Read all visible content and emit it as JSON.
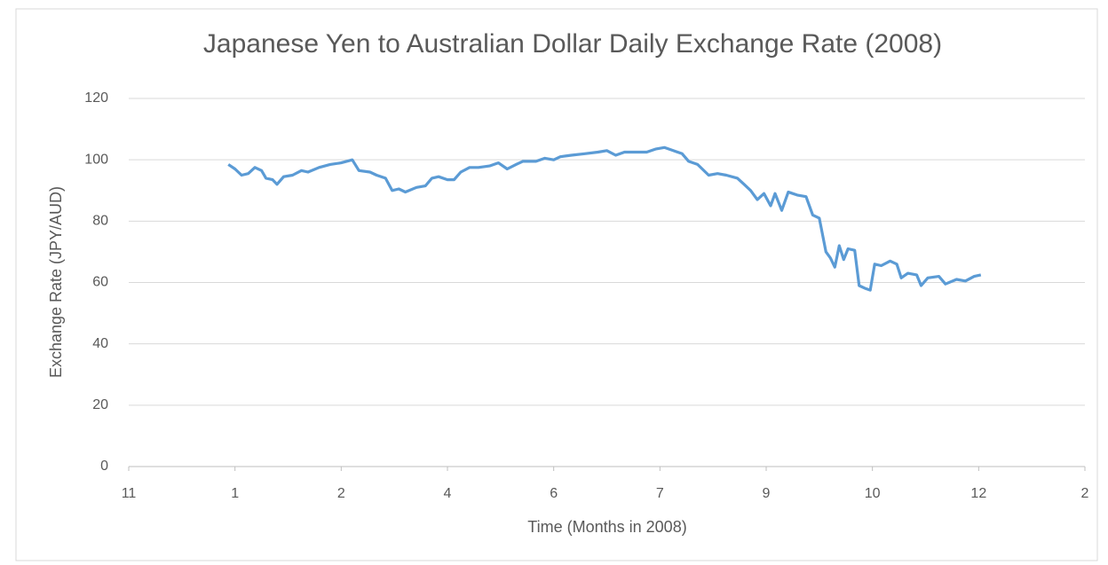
{
  "chart_data": {
    "type": "line",
    "title": "Japanese Yen to Australian Dollar Daily Exchange Rate (2008)",
    "x_label": "Time (Months in 2008)",
    "y_label": "Exchange Rate (JPY/AUD)",
    "x": [
      1,
      4,
      7,
      10,
      13,
      16,
      18,
      21,
      23,
      26,
      30,
      34,
      37,
      42,
      47,
      52,
      57,
      60,
      65,
      68,
      72,
      75,
      78,
      81,
      86,
      90,
      93,
      96,
      100,
      103,
      106,
      110,
      114,
      119,
      123,
      127,
      131,
      134,
      140,
      144,
      148,
      151,
      156,
      162,
      168,
      172,
      176,
      180,
      186,
      190,
      194,
      198,
      202,
      206,
      209,
      213,
      218,
      222,
      226,
      231,
      234,
      237,
      240,
      243,
      246,
      248,
      251,
      254,
      258,
      262,
      265,
      268,
      271,
      273,
      275,
      277,
      279,
      281,
      284,
      286,
      289,
      291,
      293,
      296,
      300,
      303,
      305,
      308,
      312,
      314,
      317,
      322,
      325,
      330,
      334,
      338,
      341
    ],
    "series": [
      {
        "name": "JPY/AUD",
        "color": "#5b9bd5",
        "values": [
          98.5,
          97,
          95,
          95.5,
          97.5,
          96.5,
          94,
          93.5,
          92,
          94.5,
          95,
          96.5,
          96,
          97.5,
          98.5,
          99,
          100,
          96.5,
          96,
          95,
          94,
          90,
          90.5,
          89.5,
          91,
          91.5,
          94,
          94.5,
          93.5,
          93.5,
          96,
          97.5,
          97.5,
          98,
          99,
          97,
          98.5,
          99.5,
          99.5,
          100.5,
          100,
          101,
          101.5,
          102,
          102.5,
          103,
          101.5,
          102.5,
          102.5,
          102.5,
          103.5,
          104,
          103,
          102,
          99.5,
          98.5,
          95,
          95.5,
          95,
          94,
          92,
          90,
          87,
          89,
          85,
          89,
          83.5,
          89.5,
          88.5,
          88,
          82,
          81,
          70,
          68,
          65,
          72,
          67.5,
          71,
          70.5,
          59,
          58,
          57.5,
          66,
          65.5,
          67,
          66,
          61.5,
          63,
          62.5,
          59,
          61.5,
          62,
          59.5,
          61,
          60.5,
          62,
          62.5
        ]
      }
    ],
    "xlim": [
      -44,
      388
    ],
    "xticks": [
      {
        "value": -44,
        "label": "11"
      },
      {
        "value": 4,
        "label": "1"
      },
      {
        "value": 52,
        "label": "2"
      },
      {
        "value": 100,
        "label": "4"
      },
      {
        "value": 148,
        "label": "6"
      },
      {
        "value": 196,
        "label": "7"
      },
      {
        "value": 244,
        "label": "9"
      },
      {
        "value": 292,
        "label": "10"
      },
      {
        "value": 340,
        "label": "12"
      },
      {
        "value": 388,
        "label": "2"
      }
    ],
    "ylim": [
      0,
      120
    ],
    "yticks": [
      0,
      20,
      40,
      60,
      80,
      100,
      120
    ],
    "grid": true
  }
}
